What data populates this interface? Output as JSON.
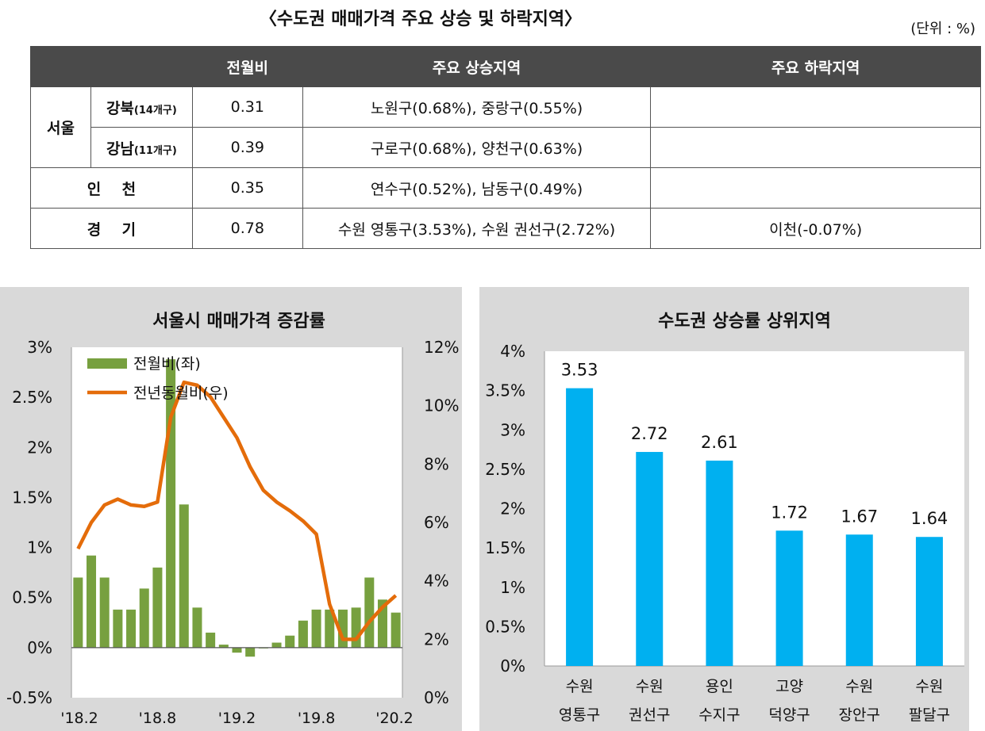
{
  "header": {
    "title": "〈수도권 매매가격 주요 상승 및 하락지역〉",
    "unit": "(단위 : %)"
  },
  "table": {
    "columns": [
      "전월비",
      "주요 상승지역",
      "주요 하락지역"
    ],
    "seoul_label": "서울",
    "rows": [
      {
        "region": "강북",
        "sub": "(14개구)",
        "mom": "0.31",
        "up": "노원구(0.68%), 중랑구(0.55%)",
        "down": ""
      },
      {
        "region": "강남",
        "sub": "(11개구)",
        "mom": "0.39",
        "up": "구로구(0.68%), 양천구(0.63%)",
        "down": ""
      },
      {
        "region": "인    천",
        "mom": "0.35",
        "up": "연수구(0.52%), 남동구(0.49%)",
        "down": ""
      },
      {
        "region": "경    기",
        "mom": "0.78",
        "up": "수원 영통구(3.53%), 수원 권선구(2.72%)",
        "down": "이천(-0.07%)"
      }
    ]
  },
  "chart_data": [
    {
      "type": "bar+line",
      "title": "서울시 매매가격 증감률",
      "legend": [
        "전월비(좌)",
        "전년동월비(우)"
      ],
      "left_ticks": [
        "3%",
        "2.5%",
        "2%",
        "1.5%",
        "1%",
        "0.5%",
        "0%",
        "-0.5%"
      ],
      "right_ticks": [
        "12%",
        "10%",
        "8%",
        "6%",
        "4%",
        "2%",
        "0%"
      ],
      "x_ticks": [
        "'18.2",
        "'18.8",
        "'19.2",
        "'19.8",
        "'20.2"
      ],
      "ylim_left": [
        -0.5,
        3
      ],
      "ylim_right": [
        0,
        12
      ],
      "colors": {
        "bar": "#77a03f",
        "line": "#e46c0a"
      },
      "series": [
        {
          "name": "전월비(좌)",
          "axis": "left",
          "values": [
            0.7,
            0.92,
            0.7,
            0.38,
            0.38,
            0.59,
            0.8,
            2.88,
            1.43,
            0.4,
            0.15,
            0.03,
            -0.05,
            -0.09,
            0.0,
            0.05,
            0.12,
            0.27,
            0.38,
            0.38,
            0.38,
            0.4,
            0.7,
            0.48,
            0.35
          ]
        },
        {
          "name": "전년동월비(우)",
          "axis": "right",
          "values": [
            5.1,
            6.0,
            6.6,
            6.8,
            6.6,
            6.55,
            6.7,
            9.6,
            10.8,
            10.7,
            10.3,
            9.6,
            8.9,
            7.9,
            7.1,
            6.7,
            6.4,
            6.05,
            5.6,
            3.2,
            2.0,
            2.0,
            2.6,
            3.1,
            3.5
          ]
        }
      ]
    },
    {
      "type": "bar",
      "title": "수도권 상승률 상위지역",
      "categories": [
        [
          "수원",
          "영통구"
        ],
        [
          "수원",
          "권선구"
        ],
        [
          "용인",
          "수지구"
        ],
        [
          "고양",
          "덕양구"
        ],
        [
          "수원",
          "장안구"
        ],
        [
          "수원",
          "팔달구"
        ]
      ],
      "values": [
        3.53,
        2.72,
        2.61,
        1.72,
        1.67,
        1.64
      ],
      "labels": [
        "3.53",
        "2.72",
        "2.61",
        "1.72",
        "1.67",
        "1.64"
      ],
      "y_ticks": [
        "4%",
        "3.5%",
        "3%",
        "2.5%",
        "2%",
        "1.5%",
        "1%",
        "0.5%",
        "0%"
      ],
      "ylim": [
        0,
        4
      ],
      "colors": {
        "bar": "#00b0f0"
      }
    }
  ]
}
